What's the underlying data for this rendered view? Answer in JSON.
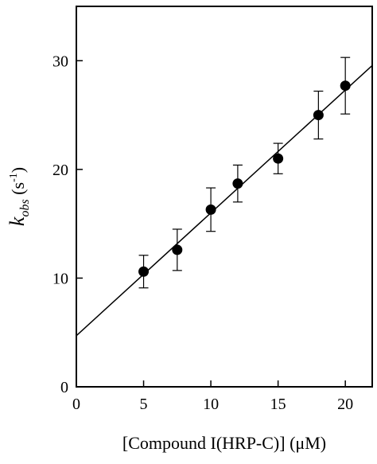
{
  "chart_data": {
    "type": "scatter",
    "title": "",
    "xlabel": "[Compound I(HRP-C)] (μM)",
    "ylabel": {
      "main": "k",
      "subscript": "obs",
      "unit_open": " (s",
      "unit_sup": "-1",
      "unit_close": ")"
    },
    "xlim": [
      0,
      22
    ],
    "ylim": [
      0,
      35
    ],
    "xticks": [
      0,
      5,
      10,
      15,
      20
    ],
    "yticks": [
      0,
      10,
      20,
      30
    ],
    "grid": false,
    "legend": "none",
    "series": [
      {
        "x": [
          5,
          7.5,
          10,
          12,
          15,
          18,
          20
        ],
        "y": [
          10.6,
          12.6,
          16.3,
          18.7,
          21.0,
          25.0,
          27.7
        ],
        "error": [
          1.5,
          1.9,
          2.0,
          1.7,
          1.4,
          2.2,
          2.6
        ]
      }
    ],
    "fit_line": {
      "slope": 1.13,
      "intercept": 4.7
    }
  }
}
